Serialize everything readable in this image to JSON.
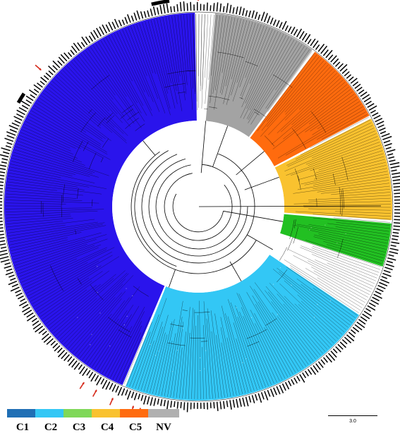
{
  "clades": [
    {
      "name": "C1",
      "color": "#2a14ec",
      "start": 91,
      "end": 247
    },
    {
      "name": "C2",
      "color": "#33c7f5",
      "start": 248,
      "end": 326
    },
    {
      "name": "C3",
      "color": "#22c022",
      "start": 342,
      "end": 355
    },
    {
      "name": "C4",
      "color": "#f9c22f",
      "start": 356,
      "end": 387
    },
    {
      "name": "C5",
      "color": "#ff6b0e",
      "start": 388,
      "end": 413
    },
    {
      "name": "NV",
      "color": "#a3a3a3",
      "start": 414,
      "end": 445
    }
  ],
  "legend": [
    {
      "label": "C1",
      "color": "#1f6fb5"
    },
    {
      "label": "C2",
      "color": "#33c7f5"
    },
    {
      "label": "C3",
      "color": "#7fd858"
    },
    {
      "label": "C4",
      "color": "#f9c22f"
    },
    {
      "label": "C5",
      "color": "#ff6b0e"
    },
    {
      "label": "NV",
      "color": "#b0b0b0"
    }
  ],
  "scale_bar": {
    "label": "3.0"
  },
  "highlight_arrows_count": 7,
  "marker_bars_count": 4
}
